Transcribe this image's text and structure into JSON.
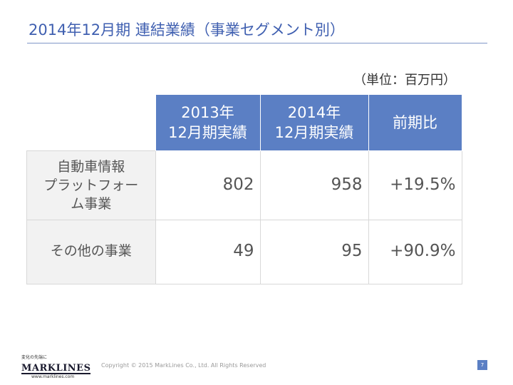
{
  "title": "2014年12月期 連結業績（事業セグメント別）",
  "unit_note": "（単位：百万円）",
  "table": {
    "headers": [
      {
        "line1": "2013年",
        "line2": "12月期実績"
      },
      {
        "line1": "2014年",
        "line2": "12月期実績"
      },
      {
        "line1": "前期比"
      }
    ],
    "rows": [
      {
        "label_lines": [
          "自動車情報",
          "プラットフォー",
          "ム事業"
        ],
        "fy2013": "802",
        "fy2014": "958",
        "change": "+19.5%"
      },
      {
        "label_lines": [
          "その他の事業"
        ],
        "fy2013": "49",
        "fy2014": "95",
        "change": "+90.9%"
      }
    ]
  },
  "footer": {
    "logo_tagline": "変化の先端に",
    "logo_name": "MARKLINES",
    "logo_url": "www.marklines.com",
    "copyright": "Copyright © 2015 MarkLines Co., Ltd. All Rights Reserved",
    "page_number": "7"
  },
  "colors": {
    "title_text": "#3f5fb0",
    "header_fill": "#5b7fc4",
    "row_label_fill": "#f2f2f2"
  }
}
